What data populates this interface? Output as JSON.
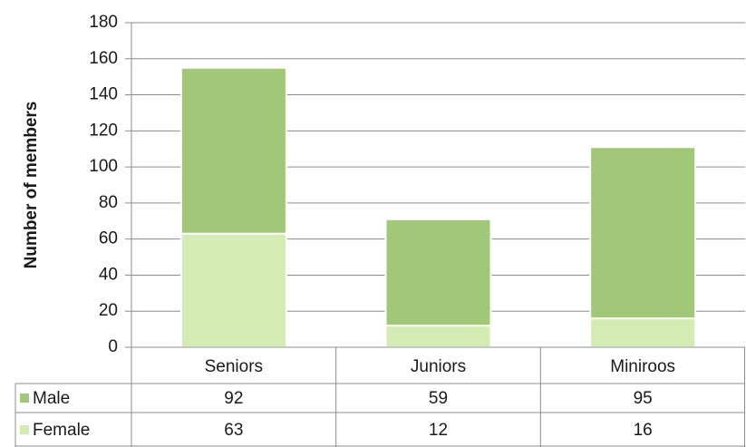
{
  "chart_data": {
    "type": "stacked_bar",
    "y_label": "Number of members",
    "categories": [
      "Seniors",
      "Juniors",
      "Miniroos"
    ],
    "series": [
      {
        "name": "Male",
        "color": "#a0c878",
        "values": [
          92,
          59,
          95
        ]
      },
      {
        "name": "Female",
        "color": "#d4ebb4",
        "values": [
          63,
          12,
          16
        ]
      }
    ],
    "ylim": [
      0,
      180
    ],
    "yticks": [
      0,
      20,
      40,
      60,
      80,
      100,
      120,
      140,
      160,
      180
    ],
    "grid": true,
    "stack_order": "bottom_last",
    "data_table": true
  }
}
